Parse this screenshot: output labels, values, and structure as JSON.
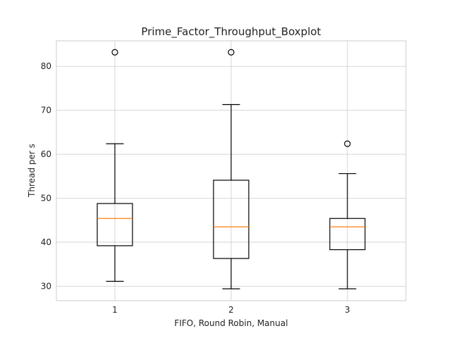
{
  "chart_data": {
    "type": "boxplot",
    "title": "Prime_Factor_Throughput_Boxplot",
    "xlabel": "FIFO, Round Robin, Manual",
    "ylabel": "Thread per s",
    "categories": [
      "1",
      "2",
      "3"
    ],
    "ylim": [
      26.7,
      85.8
    ],
    "yticks": [
      30,
      40,
      50,
      60,
      70,
      80
    ],
    "grid": true,
    "boxes": [
      {
        "category": "1",
        "whisker_low": 31.1,
        "q1": 39.2,
        "median": 45.4,
        "q3": 48.8,
        "whisker_high": 62.4,
        "outliers": [
          83.2
        ]
      },
      {
        "category": "2",
        "whisker_low": 29.4,
        "q1": 36.3,
        "median": 43.5,
        "q3": 54.1,
        "whisker_high": 71.3,
        "outliers": [
          83.2
        ]
      },
      {
        "category": "3",
        "whisker_low": 29.4,
        "q1": 38.3,
        "median": 43.5,
        "q3": 45.4,
        "whisker_high": 55.6,
        "outliers": [
          62.4
        ]
      }
    ],
    "colors": {
      "box": "#000000",
      "median": "#ff7f0e",
      "grid": "#cccccc",
      "spine": "#cccccc"
    }
  }
}
